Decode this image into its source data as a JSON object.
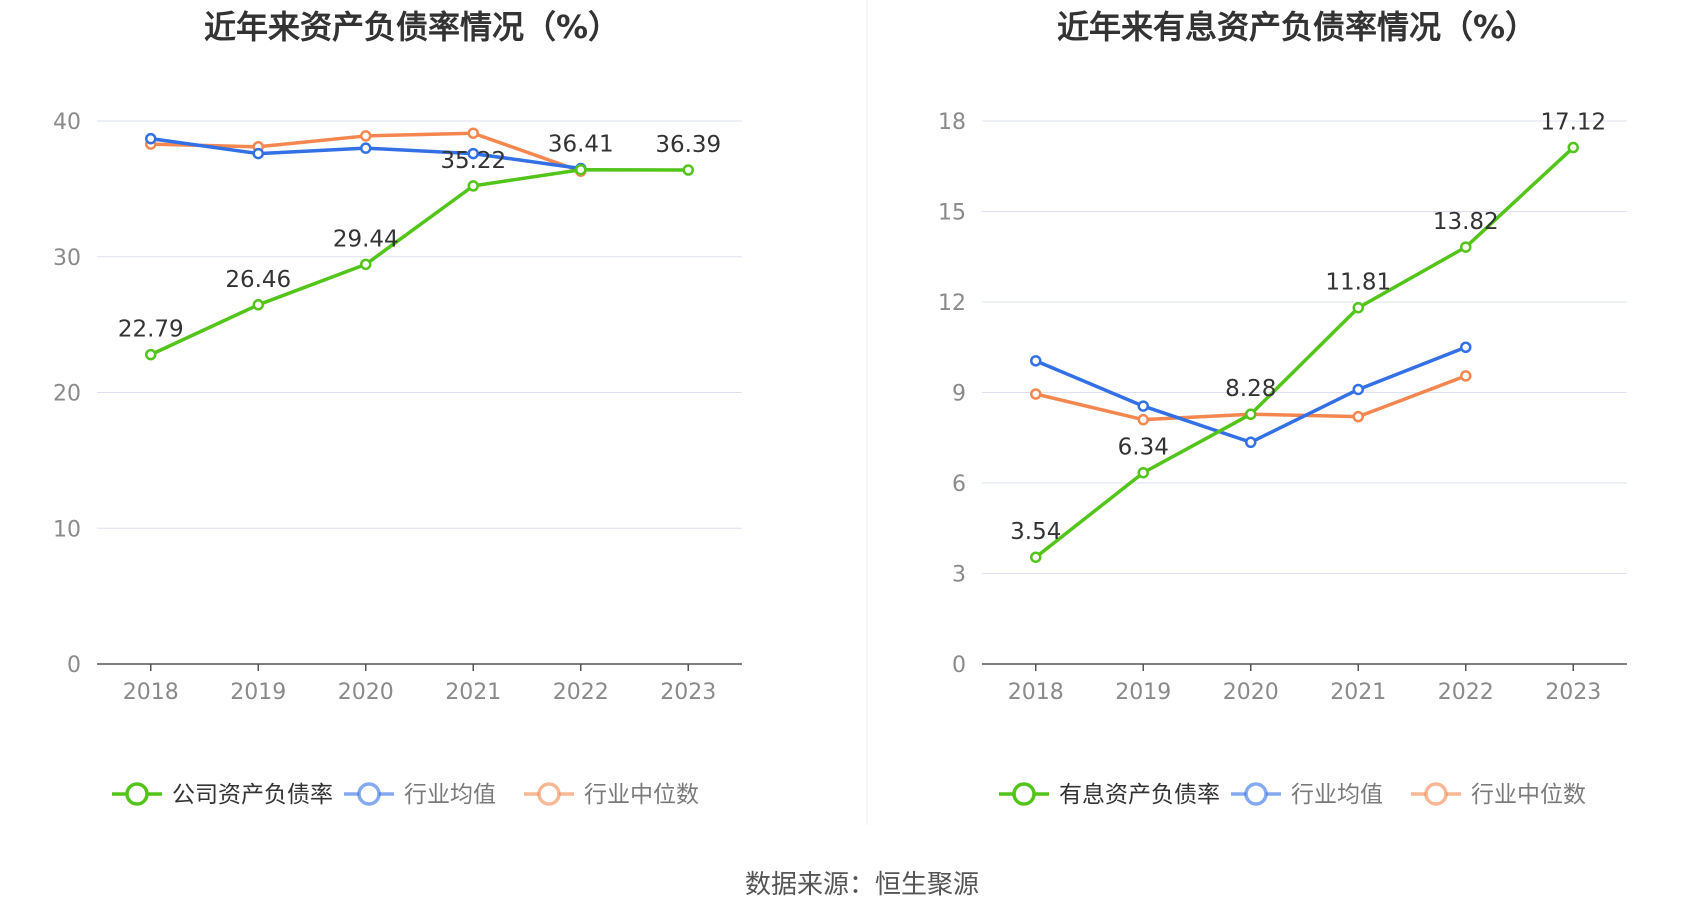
{
  "source": "数据来源：恒生聚源",
  "colors": {
    "green": "#52c41a",
    "blue": "#3370e6",
    "orange": "#f4874f",
    "grid": "#dde0f0",
    "axis": "#555555"
  },
  "chart_data": [
    {
      "type": "line",
      "title": "近年来资产负债率情况（%）",
      "categories": [
        "2018",
        "2019",
        "2020",
        "2021",
        "2022",
        "2023"
      ],
      "ylim": [
        0,
        40
      ],
      "yticks": [
        0,
        10,
        20,
        30,
        40
      ],
      "grid": true,
      "legend_position": "bottom",
      "series": [
        {
          "name": "公司资产负债率",
          "color": "#52c41a",
          "values": [
            22.79,
            26.46,
            29.44,
            35.22,
            36.41,
            36.39
          ],
          "labels": [
            "22.79",
            "26.46",
            "29.44",
            "35.22",
            "36.41",
            "36.39"
          ]
        },
        {
          "name": "行业均值",
          "color": "#3370e6",
          "values": [
            38.7,
            37.6,
            38.0,
            37.6,
            36.5,
            null
          ]
        },
        {
          "name": "行业中位数",
          "color": "#f4874f",
          "values": [
            38.3,
            38.1,
            38.9,
            39.1,
            36.3,
            null
          ]
        }
      ]
    },
    {
      "type": "line",
      "title": "近年来有息资产负债率情况（%）",
      "categories": [
        "2018",
        "2019",
        "2020",
        "2021",
        "2022",
        "2023"
      ],
      "ylim": [
        0,
        18
      ],
      "yticks": [
        0,
        3,
        6,
        9,
        12,
        15,
        18
      ],
      "grid": true,
      "legend_position": "bottom",
      "series": [
        {
          "name": "有息资产负债率",
          "color": "#52c41a",
          "values": [
            3.54,
            6.34,
            8.28,
            11.81,
            13.82,
            17.12
          ],
          "labels": [
            "3.54",
            "6.34",
            "8.28",
            "11.81",
            "13.82",
            "17.12"
          ]
        },
        {
          "name": "行业均值",
          "color": "#3370e6",
          "values": [
            10.05,
            8.55,
            7.35,
            9.1,
            10.5,
            null
          ]
        },
        {
          "name": "行业中位数",
          "color": "#f4874f",
          "values": [
            8.95,
            8.1,
            8.28,
            8.2,
            9.55,
            null
          ]
        }
      ]
    }
  ]
}
